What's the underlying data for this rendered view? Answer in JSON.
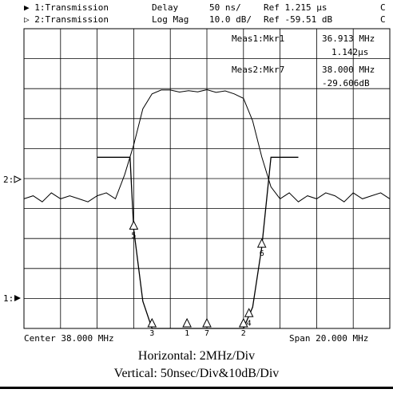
{
  "header": {
    "ch1": "▶ 1:Transmission",
    "ch1_format": "Delay",
    "ch1_scale": "50 ns/",
    "ch1_ref": "Ref  1.215 μs",
    "ch1_flag": "C",
    "ch2": "▷ 2:Transmission",
    "ch2_format": "Log Mag",
    "ch2_scale": "10.0 dB/",
    "ch2_ref": "Ref -59.51 dB",
    "ch2_flag": "C"
  },
  "markers_readout": {
    "meas1_label": "Meas1:Mkr1",
    "meas1_freq": "36.913 MHz",
    "meas1_value": "1.142μs",
    "meas2_label": "Meas2:Mkr7",
    "meas2_freq": "38.000 MHz",
    "meas2_value": "-29.606dB"
  },
  "ref_markers": {
    "ch2": "2:",
    "ch1": "1:"
  },
  "footer": {
    "center": "Center 38.000 MHz",
    "span": "Span 20.000 MHz"
  },
  "caption": {
    "horizontal": "Horizontal:    2MHz/Div",
    "vertical": "Vertical: 50nsec/Div&10dB/Div"
  },
  "chart_data": {
    "type": "line",
    "x_unit": "MHz",
    "xlim": [
      28,
      48
    ],
    "divisions": {
      "x": 10,
      "y": 10
    },
    "grid": true,
    "series": [
      {
        "name": "1:Transmission",
        "format": "Delay",
        "x": [
          32.0,
          33.0,
          33.8,
          34.0,
          34.5,
          35.0,
          35.5,
          36.0,
          36.5,
          37.0,
          37.5,
          38.0,
          38.5,
          39.0,
          39.5,
          40.0,
          40.5,
          41.0,
          41.5,
          42.0,
          42.5,
          43.0
        ],
        "y": [
          1.45,
          1.45,
          1.45,
          1.33,
          1.21,
          1.16,
          1.145,
          1.142,
          1.14,
          1.14,
          1.14,
          1.14,
          1.14,
          1.14,
          1.145,
          1.16,
          1.2,
          1.3,
          1.45,
          1.45,
          1.45,
          1.45
        ]
      },
      {
        "name": "2:Transmission",
        "format": "Log Mag",
        "x": [
          28.0,
          28.5,
          29.0,
          29.5,
          30.0,
          30.5,
          31.0,
          31.5,
          32.0,
          32.5,
          33.0,
          33.5,
          34.0,
          34.5,
          35.0,
          35.5,
          36.0,
          36.5,
          37.0,
          37.5,
          38.0,
          38.5,
          39.0,
          39.5,
          40.0,
          40.5,
          41.0,
          41.5,
          42.0,
          42.5,
          43.0,
          43.5,
          44.0,
          44.5,
          45.0,
          45.5,
          46.0,
          46.5,
          47.0,
          47.5,
          48.0
        ],
        "y": [
          -66,
          -65,
          -67,
          -64,
          -66,
          -65,
          -66,
          -67,
          -65,
          -64,
          -66,
          -58,
          -48,
          -36,
          -31,
          -29.7,
          -29.7,
          -30.4,
          -29.9,
          -30.3,
          -29.6,
          -30.5,
          -30.0,
          -31.0,
          -32.5,
          -40,
          -52,
          -62,
          -66,
          -64,
          -67,
          -65,
          -66,
          -64,
          -65,
          -67,
          -64,
          -66,
          -65,
          -64,
          -66
        ]
      }
    ],
    "markers": [
      {
        "id": "1",
        "x": 36.913
      },
      {
        "id": "2",
        "x": 40.0
      },
      {
        "id": "3",
        "x": 35.0
      },
      {
        "id": "4",
        "x": 40.3
      },
      {
        "id": "5",
        "x": 34.0
      },
      {
        "id": "6",
        "x": 41.0
      },
      {
        "id": "7",
        "x": 38.0
      }
    ]
  }
}
